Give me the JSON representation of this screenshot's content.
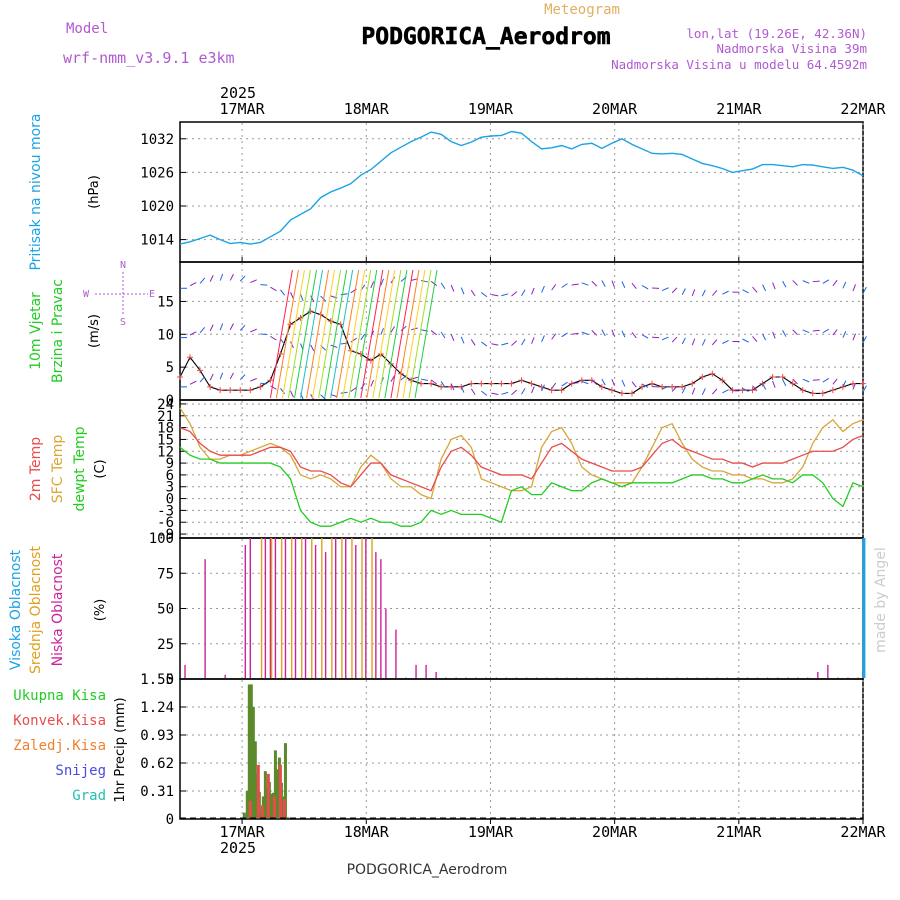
{
  "header": {
    "model_label": "Model",
    "model_name": "wrf-nmm_v3.9.1 e3km",
    "subtitle": "Meteogram",
    "station": "PODGORICA_Aerodrom",
    "lonlat": "lon,lat (19.26E, 42.36N)",
    "altitude": "Nadmorska Visina 39m",
    "model_altitude": "Nadmorska Visina u modelu 64.4592m",
    "credit": "made by Angel",
    "footer_station": "PODGORICA_Aerodrom"
  },
  "time_axis": {
    "year": "2025",
    "start_hour": 12,
    "end_hour": 144,
    "day_labels": [
      "17MAR",
      "18MAR",
      "19MAR",
      "20MAR",
      "21MAR",
      "22MAR"
    ]
  },
  "colors": {
    "pressure": "#1ba3e6",
    "temp2m": "#e84c4c",
    "sfc": "#d9a638",
    "dewpt": "#22cc22",
    "high_cloud": "#1ba3e6",
    "mid_cloud": "#e0a020",
    "low_cloud": "#cc2299",
    "total_precip": "#5a8a2a",
    "conv_precip": "#e84c4c",
    "grid": "#888888"
  },
  "chart_data": [
    {
      "type": "line",
      "title": "Pritisak na nivou mora",
      "ylabel": "(hPa)",
      "ylim": [
        1010,
        1035
      ],
      "yticks": [
        "1014",
        "1020",
        "1026",
        "1032"
      ],
      "series": [
        {
          "name": "Pritisak na nivou mora",
          "x": [
            0,
            2,
            4,
            6,
            8,
            10,
            12,
            14,
            16,
            18,
            20,
            22,
            24,
            26,
            28,
            30,
            32,
            34,
            36,
            38,
            40,
            42,
            44,
            46,
            48,
            50,
            52,
            54,
            56,
            58,
            60,
            62,
            64,
            66,
            68,
            70,
            72,
            74,
            76,
            78,
            80,
            82,
            84,
            86,
            88,
            90,
            92,
            94,
            96,
            98,
            100,
            102,
            104,
            106,
            108,
            110,
            112,
            114,
            116,
            118,
            120,
            122,
            124,
            126,
            128,
            130,
            132,
            134,
            136
          ],
          "values": [
            1013.2,
            1013.6,
            1014.2,
            1014.8,
            1014.0,
            1013.3,
            1013.5,
            1013.2,
            1013.5,
            1014.5,
            1015.5,
            1017.5,
            1018.5,
            1019.5,
            1021.5,
            1022.5,
            1023.2,
            1024.0,
            1025.5,
            1026.5,
            1028.0,
            1029.5,
            1030.5,
            1031.5,
            1032.3,
            1033.2,
            1032.8,
            1031.5,
            1030.8,
            1031.4,
            1032.3,
            1032.5,
            1032.6,
            1033.3,
            1033.0,
            1031.5,
            1030.2,
            1030.4,
            1030.8,
            1030.2,
            1031.0,
            1031.2,
            1030.3,
            1031.2,
            1032.0,
            1031.0,
            1030.2,
            1029.4,
            1029.3,
            1029.4,
            1029.2,
            1028.4,
            1027.6,
            1027.2,
            1026.7,
            1026.0,
            1026.3,
            1026.6,
            1027.4,
            1027.4,
            1027.2,
            1027.0,
            1027.4,
            1027.3,
            1027.0,
            1026.7,
            1026.9,
            1026.4,
            1025.4
          ]
        }
      ]
    },
    {
      "type": "line",
      "title": "10m Vjetar Brzina i Pravac",
      "ylabel": "(m/s)",
      "ylim": [
        0,
        21
      ],
      "yticks": [
        "0",
        "5",
        "10",
        "15"
      ],
      "compass": [
        "N",
        "W",
        "E",
        "S"
      ],
      "series": [
        {
          "name": "Brzina vjetra",
          "x": [
            0,
            2,
            4,
            6,
            8,
            10,
            12,
            14,
            16,
            18,
            20,
            22,
            24,
            26,
            28,
            30,
            32,
            34,
            36,
            38,
            40,
            42,
            44,
            46,
            48,
            50,
            52,
            54,
            56,
            58,
            60,
            62,
            64,
            66,
            68,
            70,
            72,
            74,
            76,
            78,
            80,
            82,
            84,
            86,
            88,
            90,
            92,
            94,
            96,
            98,
            100,
            102,
            104,
            106,
            108,
            110,
            112,
            114,
            116,
            118,
            120,
            122,
            124,
            126,
            128,
            130,
            132,
            134,
            136
          ],
          "values": [
            3.5,
            6.5,
            4.5,
            2.0,
            1.5,
            1.5,
            1.5,
            1.5,
            2.0,
            3.0,
            7.0,
            11.5,
            12.5,
            13.5,
            13.0,
            12.0,
            11.5,
            7.5,
            7.0,
            6.0,
            7.0,
            5.5,
            4.0,
            3.0,
            2.5,
            2.5,
            2.0,
            2.0,
            2.0,
            2.5,
            2.5,
            2.5,
            2.5,
            2.5,
            3.0,
            2.5,
            2.0,
            1.5,
            1.5,
            2.5,
            3.0,
            3.0,
            2.0,
            1.5,
            1.0,
            1.0,
            2.0,
            2.5,
            2.0,
            2.0,
            2.0,
            2.5,
            3.5,
            4.0,
            3.0,
            1.5,
            1.5,
            1.5,
            2.5,
            3.5,
            3.5,
            2.5,
            1.5,
            1.0,
            1.0,
            1.5,
            2.0,
            2.5,
            2.5
          ]
        }
      ]
    },
    {
      "type": "line",
      "title": "2m Temp / SFC Temp / dewpt Temp",
      "ylabel": "(C)",
      "ylim": [
        -10,
        25
      ],
      "yticks": [
        "-9",
        "-6",
        "-3",
        "0",
        "3",
        "6",
        "9",
        "12",
        "15",
        "18",
        "21",
        "24"
      ],
      "series": [
        {
          "name": "2m Temp",
          "x": [
            0,
            2,
            4,
            6,
            8,
            10,
            12,
            14,
            16,
            18,
            20,
            22,
            24,
            26,
            28,
            30,
            32,
            34,
            36,
            38,
            40,
            42,
            44,
            46,
            48,
            50,
            52,
            54,
            56,
            58,
            60,
            62,
            64,
            66,
            68,
            70,
            72,
            74,
            76,
            78,
            80,
            82,
            84,
            86,
            88,
            90,
            92,
            94,
            96,
            98,
            100,
            102,
            104,
            106,
            108,
            110,
            112,
            114,
            116,
            118,
            120,
            122,
            124,
            126,
            128,
            130,
            132,
            134,
            136
          ],
          "values": [
            18,
            17,
            14,
            12,
            11,
            11,
            11,
            11,
            12,
            13,
            13,
            12,
            8,
            7,
            7,
            6,
            4,
            3,
            6,
            9,
            9,
            6,
            5,
            4,
            3,
            2,
            8,
            12,
            13,
            11,
            8,
            7,
            6,
            6,
            6,
            5,
            9,
            13,
            14,
            12,
            10,
            9,
            8,
            7,
            7,
            7,
            8,
            11,
            14,
            15,
            13,
            12,
            11,
            10,
            10,
            9,
            9,
            8,
            9,
            9,
            9,
            10,
            11,
            12,
            12,
            12,
            13,
            15,
            16
          ]
        },
        {
          "name": "SFC Temp",
          "x": [
            0,
            2,
            4,
            6,
            8,
            10,
            12,
            14,
            16,
            18,
            20,
            22,
            24,
            26,
            28,
            30,
            32,
            34,
            36,
            38,
            40,
            42,
            44,
            46,
            48,
            50,
            52,
            54,
            56,
            58,
            60,
            62,
            64,
            66,
            68,
            70,
            72,
            74,
            76,
            78,
            80,
            82,
            84,
            86,
            88,
            90,
            92,
            94,
            96,
            98,
            100,
            102,
            104,
            106,
            108,
            110,
            112,
            114,
            116,
            118,
            120,
            122,
            124,
            126,
            128,
            130,
            132,
            134,
            136
          ],
          "values": [
            23,
            19,
            13,
            10,
            10,
            11,
            11,
            12,
            13,
            14,
            13,
            11,
            6,
            5,
            6,
            5,
            3,
            3,
            8,
            11,
            9,
            5,
            3,
            3,
            1,
            0,
            10,
            15,
            16,
            13,
            5,
            4,
            3,
            2,
            2,
            3,
            13,
            17,
            18,
            14,
            8,
            6,
            5,
            4,
            4,
            4,
            8,
            13,
            18,
            19,
            14,
            10,
            8,
            7,
            7,
            6,
            6,
            5,
            5,
            4,
            4,
            5,
            8,
            14,
            18,
            20,
            17,
            19,
            20
          ]
        },
        {
          "name": "dewpt Temp",
          "x": [
            0,
            2,
            4,
            6,
            8,
            10,
            12,
            14,
            16,
            18,
            20,
            22,
            24,
            26,
            28,
            30,
            32,
            34,
            36,
            38,
            40,
            42,
            44,
            46,
            48,
            50,
            52,
            54,
            56,
            58,
            60,
            62,
            64,
            66,
            68,
            70,
            72,
            74,
            76,
            78,
            80,
            82,
            84,
            86,
            88,
            90,
            92,
            94,
            96,
            98,
            100,
            102,
            104,
            106,
            108,
            110,
            112,
            114,
            116,
            118,
            120,
            122,
            124,
            126,
            128,
            130,
            132,
            134,
            136
          ],
          "values": [
            13,
            11,
            10,
            10,
            9,
            9,
            9,
            9,
            9,
            9,
            8,
            5,
            -3,
            -6,
            -7,
            -7,
            -6,
            -5,
            -6,
            -5,
            -6,
            -6,
            -7,
            -7,
            -6,
            -3,
            -4,
            -3,
            -4,
            -4,
            -4,
            -5,
            -6,
            2,
            3,
            1,
            1,
            4,
            3,
            2,
            2,
            4,
            5,
            4,
            3,
            4,
            4,
            4,
            4,
            4,
            5,
            6,
            6,
            5,
            5,
            4,
            4,
            5,
            6,
            5,
            5,
            4,
            6,
            6,
            4,
            0,
            -2,
            4,
            3
          ]
        }
      ]
    },
    {
      "type": "bar",
      "title": "Visoka / Srednja / Niska Oblacnost",
      "ylabel": "(%)",
      "ylim": [
        0,
        100
      ],
      "yticks": [
        "0",
        "25",
        "50",
        "75",
        "100"
      ],
      "series": [
        {
          "name": "Niska Oblacnost",
          "x": [
            1,
            5,
            9,
            13,
            14,
            17,
            18,
            19,
            21,
            23,
            25,
            27,
            29,
            31,
            33,
            35,
            37,
            39,
            40,
            41,
            43,
            45,
            47,
            49,
            51,
            53,
            55,
            57,
            59,
            61,
            63,
            65,
            67,
            69,
            71,
            73,
            75,
            77,
            79,
            81,
            83,
            85,
            87,
            89,
            91,
            93,
            95,
            97,
            99,
            101,
            103,
            105,
            107,
            109,
            111,
            113,
            115,
            117,
            119,
            121,
            123,
            125,
            127,
            129,
            131,
            133,
            135
          ],
          "values": [
            10,
            85,
            3,
            95,
            100,
            100,
            100,
            100,
            100,
            100,
            100,
            95,
            90,
            100,
            100,
            95,
            100,
            90,
            85,
            50,
            35,
            1,
            10,
            10,
            5,
            1,
            1,
            1,
            1,
            1,
            1,
            1,
            1,
            1,
            1,
            1,
            1,
            1,
            1,
            1,
            1,
            1,
            1,
            1,
            1,
            1,
            1,
            1,
            1,
            1,
            1,
            1,
            1,
            1,
            1,
            1,
            1,
            1,
            1,
            1,
            1,
            1,
            5,
            10,
            1,
            1,
            1
          ]
        },
        {
          "name": "Srednja Oblacnost",
          "x": [
            16,
            18,
            20,
            22,
            24,
            26,
            28,
            30,
            32,
            34,
            36,
            38
          ],
          "values": [
            100,
            100,
            100,
            100,
            100,
            100,
            100,
            100,
            100,
            100,
            100,
            100
          ]
        },
        {
          "name": "Visoka Oblacnost",
          "x": [
            135.7
          ],
          "values": [
            100
          ]
        }
      ]
    },
    {
      "type": "bar",
      "title": "1hr Precip",
      "ylabel": "1hr Precip (mm)",
      "ylim": [
        0,
        1.55
      ],
      "yticks": [
        "0",
        "0.31",
        "0.62",
        "0.93",
        "1.24",
        "1.55"
      ],
      "legend": [
        "Ukupna Kisa",
        "Konvek.Kisa",
        "Zaledj.Kisa",
        "Snijeg",
        "Grad"
      ],
      "series": [
        {
          "name": "Ukupna Kisa",
          "x": [
            12.8,
            13.4,
            13.8,
            14.2,
            14.6,
            15.0,
            15.4,
            15.8,
            16.2,
            16.6,
            17.0,
            17.4,
            17.8,
            18.2,
            18.6,
            19.0,
            19.4,
            19.8,
            20.2,
            20.6,
            21.0,
            21.4,
            21.8
          ],
          "values": [
            0.07,
            0.31,
            1.49,
            1.49,
            1.24,
            0.86,
            0.5,
            0.3,
            0.06,
            0.25,
            0.53,
            0.34,
            0.41,
            0.28,
            0.29,
            0.76,
            0.55,
            0.68,
            0.4,
            0.25,
            0.84,
            0.02,
            0.01
          ]
        },
        {
          "name": "Konvek.Kisa",
          "x": [
            13.6,
            15.2,
            16.0,
            17.2,
            18.4,
            19.6,
            20.4
          ],
          "values": [
            0.2,
            0.6,
            0.15,
            0.5,
            0.25,
            0.6,
            0.22
          ]
        }
      ]
    }
  ]
}
